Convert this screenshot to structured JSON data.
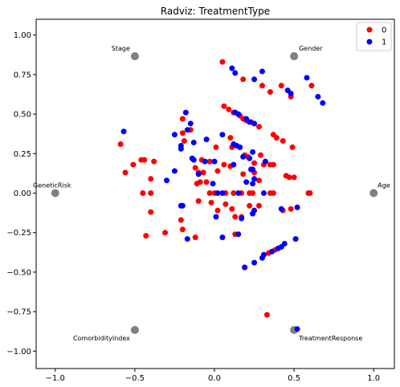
{
  "chart_data": {
    "type": "scatter",
    "title": "Radviz: TreatmentType",
    "xlabel": "",
    "ylabel": "",
    "xlim": [
      -1.12,
      1.13
    ],
    "ylim": [
      -1.11,
      1.1
    ],
    "x_ticks": [
      -1.0,
      -0.5,
      0.0,
      0.5,
      1.0
    ],
    "x_tick_labels": [
      "−1.0",
      "−0.5",
      "0.0",
      "0.5",
      "1.0"
    ],
    "y_ticks": [
      1.0,
      0.75,
      0.5,
      0.25,
      0.0,
      -0.25,
      -0.5,
      -0.75,
      -1.0
    ],
    "y_tick_labels": [
      "1.00",
      "0.75",
      "0.50",
      "0.25",
      "0.00",
      "−0.25",
      "−0.50",
      "−0.75",
      "−1.00"
    ],
    "grid": false,
    "legend_position": "top-right",
    "anchors": [
      {
        "name": "Age",
        "x": 1.0,
        "y": 0.0
      },
      {
        "name": "Gender",
        "x": 0.5,
        "y": 0.866
      },
      {
        "name": "Stage",
        "x": -0.5,
        "y": 0.866
      },
      {
        "name": "GeneticRisk",
        "x": -1.0,
        "y": 0.0
      },
      {
        "name": "ComorbidityIndex",
        "x": -0.5,
        "y": -0.866
      },
      {
        "name": "TreatmentResponse",
        "x": 0.5,
        "y": -0.866
      }
    ],
    "anchor_color": "#808080",
    "series": [
      {
        "name": "0",
        "color": "#ff0000",
        "points": [
          [
            0.05,
            0.83
          ],
          [
            0.18,
            0.72
          ],
          [
            0.3,
            0.68
          ],
          [
            0.42,
            0.68
          ],
          [
            0.35,
            0.64
          ],
          [
            0.48,
            0.61
          ],
          [
            0.61,
            0.68
          ],
          [
            0.06,
            0.55
          ],
          [
            0.09,
            0.53
          ],
          [
            0.16,
            0.49
          ],
          [
            0.18,
            0.47
          ],
          [
            0.2,
            0.46
          ],
          [
            0.23,
            0.45
          ],
          [
            0.28,
            0.42
          ],
          [
            0.12,
            0.51
          ],
          [
            -0.2,
            0.47
          ],
          [
            -0.15,
            0.4
          ],
          [
            -0.2,
            0.38
          ],
          [
            -0.19,
            0.33
          ],
          [
            0.1,
            0.35
          ],
          [
            0.37,
            0.37
          ],
          [
            0.39,
            0.35
          ],
          [
            0.43,
            0.33
          ],
          [
            0.49,
            0.29
          ],
          [
            -0.59,
            0.31
          ],
          [
            -0.44,
            0.21
          ],
          [
            -0.46,
            0.21
          ],
          [
            -0.38,
            0.2
          ],
          [
            -0.51,
            0.18
          ],
          [
            -0.56,
            0.13
          ],
          [
            0.01,
            0.29
          ],
          [
            0.11,
            0.29
          ],
          [
            0.19,
            0.24
          ],
          [
            0.21,
            0.23
          ],
          [
            0.29,
            0.24
          ],
          [
            0.25,
            0.19
          ],
          [
            0.31,
            0.18
          ],
          [
            0.35,
            0.18
          ],
          [
            0.37,
            0.18
          ],
          [
            -0.08,
            0.21
          ],
          [
            -0.03,
            0.2
          ],
          [
            -0.12,
            0.16
          ],
          [
            -0.1,
            0.13
          ],
          [
            -0.07,
            0.13
          ],
          [
            0.02,
            0.14
          ],
          [
            0.06,
            0.18
          ],
          [
            0.1,
            0.17
          ],
          [
            0.18,
            0.12
          ],
          [
            0.23,
            0.15
          ],
          [
            0.25,
            0.13
          ],
          [
            0.28,
            0.08
          ],
          [
            0.45,
            0.11
          ],
          [
            0.47,
            0.1
          ],
          [
            0.5,
            0.1
          ],
          [
            -0.4,
            0.09
          ],
          [
            -0.11,
            0.06
          ],
          [
            -0.09,
            0.07
          ],
          [
            -0.05,
            0.07
          ],
          [
            -0.45,
            0.0
          ],
          [
            -0.4,
            0.0
          ],
          [
            -0.03,
            0.0
          ],
          [
            0.0,
            0.0
          ],
          [
            0.07,
            0.0
          ],
          [
            0.12,
            0.0
          ],
          [
            0.17,
            0.0
          ],
          [
            0.22,
            0.0
          ],
          [
            0.24,
            0.0
          ],
          [
            0.35,
            0.0
          ],
          [
            0.37,
            0.0
          ],
          [
            0.59,
            0.0
          ],
          [
            0.6,
            0.0
          ],
          [
            -0.4,
            -0.12
          ],
          [
            -0.21,
            -0.08
          ],
          [
            -0.1,
            -0.05
          ],
          [
            -0.02,
            -0.06
          ],
          [
            0.07,
            -0.07
          ],
          [
            0.11,
            -0.1
          ],
          [
            0.22,
            -0.08
          ],
          [
            0.28,
            -0.08
          ],
          [
            0.43,
            -0.11
          ],
          [
            0.48,
            -0.1
          ],
          [
            0.02,
            -0.11
          ],
          [
            0.13,
            -0.15
          ],
          [
            0.17,
            -0.15
          ],
          [
            -0.21,
            -0.17
          ],
          [
            -0.43,
            -0.27
          ],
          [
            -0.31,
            -0.25
          ],
          [
            -0.2,
            -0.23
          ],
          [
            -0.12,
            -0.28
          ],
          [
            0.13,
            -0.26
          ],
          [
            0.19,
            -0.47
          ],
          [
            0.34,
            -0.38
          ],
          [
            0.38,
            -0.36
          ],
          [
            0.33,
            -0.77
          ]
        ]
      },
      {
        "name": "1",
        "color": "#0000ff",
        "points": [
          [
            0.11,
            0.79
          ],
          [
            0.13,
            0.76
          ],
          [
            0.25,
            0.72
          ],
          [
            0.3,
            0.77
          ],
          [
            0.46,
            0.65
          ],
          [
            0.48,
            0.63
          ],
          [
            0.58,
            0.73
          ],
          [
            0.65,
            0.61
          ],
          [
            0.68,
            0.57
          ],
          [
            -0.18,
            0.51
          ],
          [
            -0.15,
            0.44
          ],
          [
            -0.17,
            0.4
          ],
          [
            0.13,
            0.51
          ],
          [
            0.15,
            0.5
          ],
          [
            0.2,
            0.47
          ],
          [
            0.25,
            0.44
          ],
          [
            0.22,
            0.45
          ],
          [
            -0.57,
            0.39
          ],
          [
            -0.25,
            0.37
          ],
          [
            -0.13,
            0.32
          ],
          [
            -0.21,
            0.3
          ],
          [
            -0.21,
            0.28
          ],
          [
            -0.05,
            0.34
          ],
          [
            0.05,
            0.37
          ],
          [
            0.12,
            0.31
          ],
          [
            0.14,
            0.3
          ],
          [
            0.16,
            0.29
          ],
          [
            0.24,
            0.26
          ],
          [
            0.32,
            0.2
          ],
          [
            -0.14,
            0.22
          ],
          [
            -0.13,
            0.21
          ],
          [
            -0.06,
            0.2
          ],
          [
            0.0,
            0.2
          ],
          [
            0.18,
            0.23
          ],
          [
            0.22,
            0.22
          ],
          [
            0.12,
            0.18
          ],
          [
            0.24,
            0.15
          ],
          [
            -0.25,
            0.14
          ],
          [
            -0.1,
            0.12
          ],
          [
            -0.3,
            0.08
          ],
          [
            -0.01,
            0.06
          ],
          [
            0.2,
            0.07
          ],
          [
            0.25,
            0.09
          ],
          [
            0.24,
            0.06
          ],
          [
            0.23,
            0.15
          ],
          [
            0.02,
            0.0
          ],
          [
            0.05,
            0.0
          ],
          [
            0.15,
            0.0
          ],
          [
            0.31,
            0.0
          ],
          [
            -0.2,
            -0.08
          ],
          [
            -0.21,
            -0.08
          ],
          [
            0.01,
            -0.15
          ],
          [
            0.17,
            -0.16
          ],
          [
            0.24,
            -0.13
          ],
          [
            0.25,
            -0.11
          ],
          [
            0.42,
            -0.1
          ],
          [
            0.52,
            -0.09
          ],
          [
            -0.17,
            -0.29
          ],
          [
            0.05,
            -0.28
          ],
          [
            0.15,
            -0.26
          ],
          [
            0.51,
            -0.29
          ],
          [
            0.3,
            -0.41
          ],
          [
            0.31,
            -0.39
          ],
          [
            0.36,
            -0.37
          ],
          [
            0.4,
            -0.35
          ],
          [
            0.42,
            -0.34
          ],
          [
            0.44,
            -0.32
          ],
          [
            0.19,
            -0.47
          ],
          [
            0.25,
            -0.44
          ],
          [
            0.52,
            -0.86
          ]
        ]
      }
    ]
  }
}
